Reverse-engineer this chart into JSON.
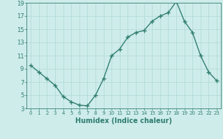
{
  "x": [
    0,
    1,
    2,
    3,
    4,
    5,
    6,
    7,
    8,
    9,
    10,
    11,
    12,
    13,
    14,
    15,
    16,
    17,
    18,
    19,
    20,
    21,
    22,
    23
  ],
  "y": [
    9.5,
    8.5,
    7.5,
    6.5,
    4.8,
    4.0,
    3.5,
    3.4,
    5.0,
    7.5,
    11.0,
    12.0,
    13.8,
    14.5,
    14.8,
    16.2,
    17.0,
    17.5,
    19.2,
    16.2,
    14.5,
    11.0,
    8.5,
    7.2
  ],
  "line_color": "#2e7d6e",
  "marker": "+",
  "marker_size": 4,
  "marker_linewidth": 1.0,
  "bg_color": "#ceecea",
  "grid_color": "#aed8d4",
  "xlabel": "Humidex (Indice chaleur)",
  "ylim": [
    3,
    19
  ],
  "xlim": [
    -0.5,
    23.5
  ],
  "yticks": [
    3,
    5,
    7,
    9,
    11,
    13,
    15,
    17,
    19
  ],
  "xticks": [
    0,
    1,
    2,
    3,
    4,
    5,
    6,
    7,
    8,
    9,
    10,
    11,
    12,
    13,
    14,
    15,
    16,
    17,
    18,
    19,
    20,
    21,
    22,
    23
  ],
  "tick_color": "#2e7d6e",
  "label_color": "#2e7d6e",
  "xlabel_fontsize": 7,
  "tick_fontsize": 6,
  "line_width": 1.0
}
